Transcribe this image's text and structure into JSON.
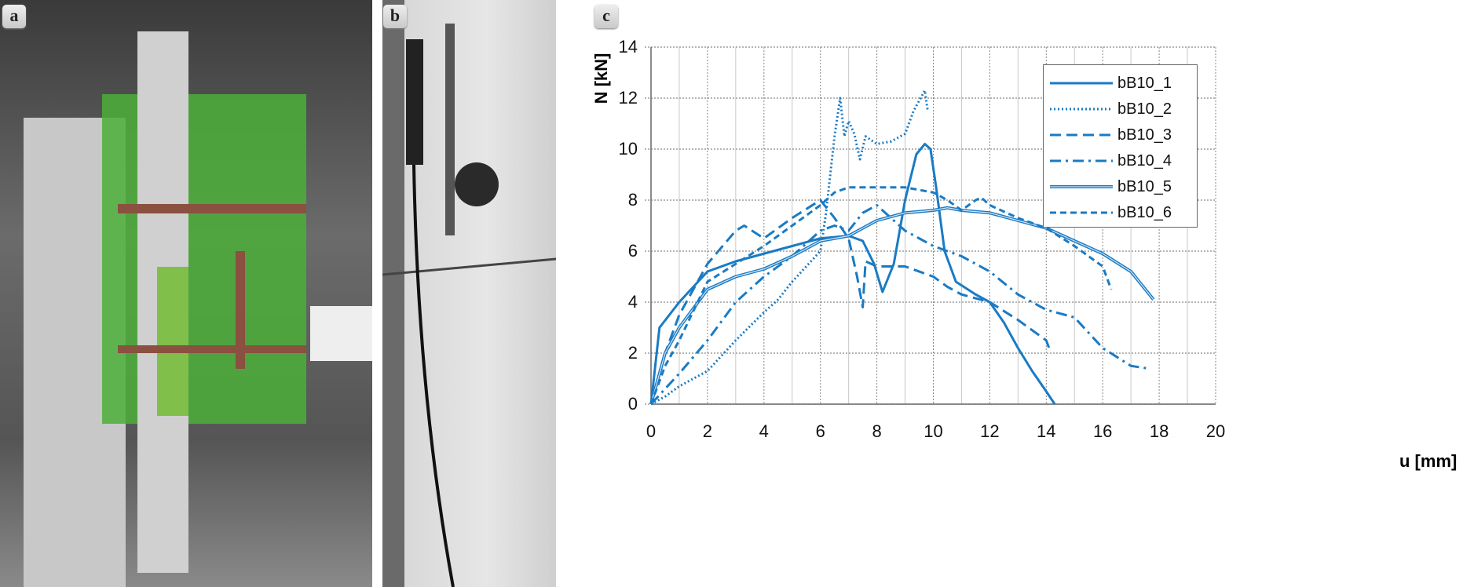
{
  "panels": {
    "a": "a",
    "b": "b",
    "c": "c"
  },
  "chart_data": {
    "type": "line",
    "title": "",
    "xlabel": "u [mm]",
    "ylabel": "N [kN]",
    "xlim": [
      0,
      20
    ],
    "ylim": [
      0,
      14
    ],
    "xticks": [
      "0",
      "2",
      "4",
      "6",
      "8",
      "10",
      "12",
      "14",
      "16",
      "18",
      "20"
    ],
    "yticks": [
      "0",
      "2",
      "4",
      "6",
      "8",
      "10",
      "12",
      "14"
    ],
    "grid": true,
    "legend_position": "top-right",
    "color": "#1a7bc4",
    "series": [
      {
        "name": "bB10_1",
        "style": "solid",
        "x": [
          0,
          0.3,
          1,
          2,
          3,
          4,
          5,
          6,
          7,
          7.5,
          7.9,
          8.2,
          8.6,
          9,
          9.4,
          9.7,
          9.9,
          10.1,
          10.4,
          10.8,
          11.5,
          12,
          12.5,
          13,
          13.5,
          14,
          14.3
        ],
        "y": [
          0,
          3,
          4,
          5.2,
          5.6,
          5.9,
          6.2,
          6.5,
          6.6,
          6.4,
          5.5,
          4.4,
          5.5,
          8,
          9.8,
          10.2,
          10,
          8.5,
          6,
          4.8,
          4.3,
          4,
          3.2,
          2.2,
          1.3,
          0.5,
          0
        ]
      },
      {
        "name": "bB10_2",
        "style": "dotted",
        "x": [
          0,
          0.5,
          1,
          2,
          3,
          4,
          4.5,
          5,
          5.5,
          6,
          6.2,
          6.5,
          6.7,
          6.85,
          7,
          7.2,
          7.4,
          7.6,
          8,
          8.5,
          9,
          9.3,
          9.7,
          9.8
        ],
        "y": [
          0,
          0.3,
          0.7,
          1.3,
          2.5,
          3.6,
          4.1,
          4.8,
          5.4,
          6,
          7.5,
          10.5,
          12,
          10.5,
          11.1,
          10.6,
          9.6,
          10.5,
          10.2,
          10.3,
          10.6,
          11.5,
          12.3,
          11.5
        ]
      },
      {
        "name": "bB10_3",
        "style": "dashed",
        "x": [
          0,
          0.5,
          1,
          2,
          3,
          3.3,
          4,
          5,
          6,
          6.5,
          7,
          7.3,
          7.5,
          7.6,
          8,
          9,
          10,
          10.5,
          11,
          12,
          13,
          14,
          14.1
        ],
        "y": [
          0,
          2,
          3.5,
          5.5,
          6.8,
          7,
          6.5,
          7.3,
          8,
          7.3,
          6.5,
          5,
          3.8,
          5.6,
          5.4,
          5.4,
          5,
          4.6,
          4.3,
          4,
          3.3,
          2.5,
          2.2
        ]
      },
      {
        "name": "bB10_4",
        "style": "dashdot",
        "x": [
          0,
          1,
          2,
          3,
          4,
          5,
          6,
          6.5,
          7,
          7.5,
          8,
          9,
          9.5,
          10,
          11,
          12,
          13,
          14,
          15,
          16,
          17,
          17.6
        ],
        "y": [
          0,
          1.2,
          2.5,
          4,
          5,
          5.8,
          6.8,
          7,
          6.8,
          7.5,
          7.8,
          6.8,
          6.5,
          6.2,
          5.8,
          5.2,
          4.3,
          3.7,
          3.4,
          2.2,
          1.5,
          1.4
        ]
      },
      {
        "name": "bB10_5",
        "style": "double",
        "x": [
          0,
          0.5,
          1,
          2,
          3,
          4,
          5,
          6,
          7,
          8,
          9,
          10,
          10.5,
          11,
          12,
          13,
          14,
          15,
          16,
          17,
          17.8
        ],
        "y": [
          0,
          2,
          3,
          4.5,
          5,
          5.3,
          5.8,
          6.4,
          6.6,
          7.2,
          7.5,
          7.6,
          7.7,
          7.6,
          7.5,
          7.2,
          6.9,
          6.4,
          5.9,
          5.2,
          4.1
        ]
      },
      {
        "name": "bB10_6",
        "style": "dash",
        "x": [
          0,
          0.5,
          1,
          2,
          3,
          4,
          5,
          6,
          6.5,
          7,
          8,
          9,
          9.5,
          10,
          10.5,
          11,
          11.5,
          11.7,
          12,
          13,
          14,
          15,
          16,
          16.3
        ],
        "y": [
          0,
          1.5,
          2.5,
          4.8,
          5.5,
          6.2,
          7,
          7.8,
          8.3,
          8.5,
          8.5,
          8.5,
          8.4,
          8.3,
          8,
          7.6,
          8,
          8.1,
          7.8,
          7.3,
          6.9,
          6.2,
          5.4,
          4.5
        ]
      }
    ]
  }
}
